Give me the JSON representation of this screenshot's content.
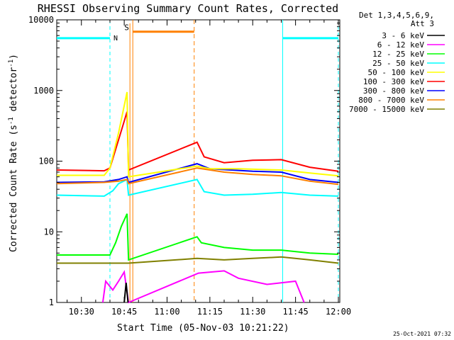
{
  "chart_data": {
    "type": "line",
    "title": "RHESSI Observing Summary Count Rates, Corrected",
    "xlabel": "Start Time (05-Nov-03 10:21:22)",
    "ylabel_main": "Corrected Count Rate (s",
    "ylabel_sup1": "-1",
    "ylabel_mid": " detector",
    "ylabel_sup2": "-1",
    "ylabel_end": ")",
    "y_scale": "log",
    "ylim": [
      1,
      10000
    ],
    "xlim": [
      "10:21:22",
      "12:00:30"
    ],
    "x_ticks": [
      "10:30",
      "10:45",
      "11:00",
      "11:15",
      "11:30",
      "11:45",
      "12:00"
    ],
    "y_ticks": [
      "1",
      "10",
      "100",
      "1000",
      "10000"
    ],
    "legend_header": [
      "Det 1,3,4,5,6,9,",
      "Att 3"
    ],
    "legend_position": "right",
    "timestamp": "25-Oct-2021 07:32",
    "annotations": {
      "night_label": "N",
      "saa_label": "S",
      "night_color": "#00ffff",
      "saa_color": "#ff8000"
    },
    "night_intervals": [
      [
        "10:21:22",
        "10:40:00"
      ],
      [
        "11:40:30",
        "12:00:00"
      ]
    ],
    "saa_interval": [
      "10:48:00",
      "11:09:30"
    ],
    "series": [
      {
        "name": "3 - 6 keV",
        "color": "#000000",
        "points": [
          [
            "10:45:00",
            1.0
          ],
          [
            "10:45:40",
            1.9
          ],
          [
            "10:46:20",
            1.0
          ]
        ]
      },
      {
        "name": "6 - 12 keV",
        "color": "#ff00ff",
        "points": [
          [
            "10:37:30",
            1.0
          ],
          [
            "10:38:30",
            2.0
          ],
          [
            "10:41:00",
            1.5
          ],
          [
            "10:43:00",
            2.0
          ],
          [
            "10:45:00",
            2.7
          ],
          [
            "10:46:30",
            1.0
          ],
          [
            "11:11:00",
            2.6
          ],
          [
            "11:20:00",
            2.8
          ],
          [
            "11:25:00",
            2.2
          ],
          [
            "11:35:00",
            1.8
          ],
          [
            "11:45:00",
            2.0
          ],
          [
            "11:48:00",
            1.0
          ]
        ]
      },
      {
        "name": "12 - 25 keV",
        "color": "#00ff00",
        "points": [
          [
            "10:21:22",
            4.7
          ],
          [
            "10:40:00",
            4.7
          ],
          [
            "10:42:00",
            7.0
          ],
          [
            "10:44:00",
            12.0
          ],
          [
            "10:46:00",
            18.0
          ],
          [
            "10:46:30",
            4.0
          ],
          [
            "11:10:30",
            8.5
          ],
          [
            "11:12:00",
            7.0
          ],
          [
            "11:20:00",
            6.0
          ],
          [
            "11:30:00",
            5.5
          ],
          [
            "11:40:00",
            5.5
          ],
          [
            "11:50:00",
            5.0
          ],
          [
            "12:00:00",
            4.8
          ]
        ]
      },
      {
        "name": "25 - 50 keV",
        "color": "#00ffff",
        "points": [
          [
            "10:21:22",
            33
          ],
          [
            "10:38:00",
            32
          ],
          [
            "10:41:00",
            38
          ],
          [
            "10:43:00",
            48
          ],
          [
            "10:46:00",
            55
          ],
          [
            "10:46:30",
            33
          ],
          [
            "11:10:30",
            55
          ],
          [
            "11:13:00",
            37
          ],
          [
            "11:20:00",
            33
          ],
          [
            "11:30:00",
            34
          ],
          [
            "11:40:00",
            36
          ],
          [
            "11:50:00",
            33
          ],
          [
            "12:00:00",
            32
          ]
        ]
      },
      {
        "name": "50 - 100 keV",
        "color": "#ffff00",
        "points": [
          [
            "10:21:22",
            63
          ],
          [
            "10:38:00",
            63
          ],
          [
            "10:40:00",
            80
          ],
          [
            "10:43:00",
            250
          ],
          [
            "10:46:00",
            950
          ],
          [
            "10:46:30",
            60
          ],
          [
            "11:10:30",
            85
          ],
          [
            "11:15:00",
            78
          ],
          [
            "11:25:00",
            78
          ],
          [
            "11:40:00",
            75
          ],
          [
            "11:50:00",
            68
          ],
          [
            "12:00:00",
            62
          ]
        ]
      },
      {
        "name": "100 - 300 keV",
        "color": "#ff0000",
        "points": [
          [
            "10:21:22",
            75
          ],
          [
            "10:38:00",
            73
          ],
          [
            "10:40:00",
            80
          ],
          [
            "10:43:00",
            200
          ],
          [
            "10:46:00",
            500
          ],
          [
            "10:46:30",
            75
          ],
          [
            "11:10:30",
            185
          ],
          [
            "11:13:00",
            115
          ],
          [
            "11:20:00",
            95
          ],
          [
            "11:30:00",
            103
          ],
          [
            "11:40:00",
            105
          ],
          [
            "11:50:00",
            82
          ],
          [
            "12:00:00",
            72
          ]
        ]
      },
      {
        "name": "300 - 800 keV",
        "color": "#0000ff",
        "points": [
          [
            "10:21:22",
            50
          ],
          [
            "10:38:00",
            51
          ],
          [
            "10:43:00",
            55
          ],
          [
            "10:46:00",
            60
          ],
          [
            "10:46:30",
            50
          ],
          [
            "11:10:30",
            92
          ],
          [
            "11:15:00",
            78
          ],
          [
            "11:30:00",
            72
          ],
          [
            "11:40:00",
            70
          ],
          [
            "11:50:00",
            55
          ],
          [
            "12:00:00",
            50
          ]
        ]
      },
      {
        "name": "800 - 7000 keV",
        "color": "#ff8000",
        "points": [
          [
            "10:21:22",
            48
          ],
          [
            "10:38:00",
            50
          ],
          [
            "10:43:00",
            52
          ],
          [
            "10:46:00",
            55
          ],
          [
            "10:46:30",
            48
          ],
          [
            "11:10:30",
            80
          ],
          [
            "11:20:00",
            70
          ],
          [
            "11:30:00",
            65
          ],
          [
            "11:40:00",
            62
          ],
          [
            "11:50:00",
            52
          ],
          [
            "12:00:00",
            47
          ]
        ]
      },
      {
        "name": "7000 - 15000 keV",
        "color": "#808000",
        "points": [
          [
            "10:21:22",
            3.6
          ],
          [
            "10:45:00",
            3.6
          ],
          [
            "10:46:30",
            3.6
          ],
          [
            "11:10:30",
            4.2
          ],
          [
            "11:20:00",
            4.0
          ],
          [
            "11:30:00",
            4.2
          ],
          [
            "11:40:00",
            4.4
          ],
          [
            "11:50:00",
            4.0
          ],
          [
            "12:00:00",
            3.6
          ]
        ]
      }
    ]
  }
}
